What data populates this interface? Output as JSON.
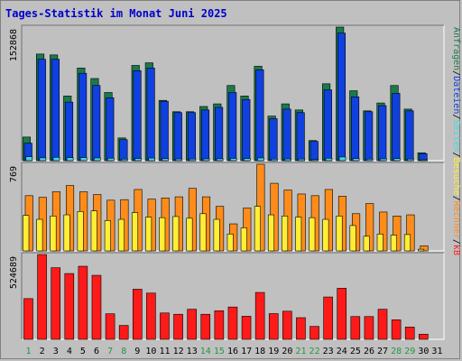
{
  "title": "Tages-Statistik im Monat Juni 2025",
  "colors": {
    "title": "#0000cc",
    "plot_bg": "#c0c0c0",
    "grid": "#808080",
    "anfragen": "#1a7a4a",
    "dateien": "#1040e0",
    "seiten": "#40d8e0",
    "besuche": "#ffee33",
    "rechner": "#ff8c1a",
    "kb": "#ff1a1a",
    "weekend": "#229944",
    "weekday": "#000000"
  },
  "chart_data": [
    {
      "type": "bar",
      "panel": "top",
      "ymax_label": "152868",
      "ylim": [
        0,
        152868
      ],
      "side_labels": [
        "Anfragen",
        "/",
        "Dateien",
        "/",
        "Seiten",
        "/",
        "Besuche",
        "/",
        "Rechner",
        "/",
        "kB"
      ],
      "categories": [
        "1",
        "2",
        "3",
        "4",
        "5",
        "6",
        "7",
        "8",
        "9",
        "10",
        "11",
        "12",
        "13",
        "14",
        "15",
        "16",
        "17",
        "18",
        "19",
        "20",
        "21",
        "22",
        "23",
        "24",
        "25",
        "26",
        "27",
        "28",
        "29",
        "30",
        "31"
      ],
      "series": [
        {
          "name": "Anfragen",
          "values": [
            27000,
            122000,
            121000,
            74000,
            106000,
            94000,
            78000,
            26000,
            109000,
            112000,
            69000,
            56000,
            56000,
            62000,
            65000,
            86000,
            74000,
            108000,
            51000,
            65000,
            58000,
            23000,
            88000,
            152868,
            80000,
            57000,
            66000,
            86000,
            59000,
            9000,
            0
          ]
        },
        {
          "name": "Dateien",
          "values": [
            20000,
            116000,
            116000,
            67000,
            100000,
            86000,
            72000,
            24000,
            103000,
            106000,
            68000,
            55000,
            55000,
            58000,
            61000,
            78000,
            70000,
            104000,
            48000,
            59000,
            55000,
            22000,
            81000,
            146000,
            73000,
            56000,
            63000,
            77000,
            57000,
            8000,
            0
          ]
        },
        {
          "name": "Seiten",
          "values": [
            4500,
            3200,
            3800,
            3400,
            3500,
            3100,
            2800,
            1800,
            2500,
            3000,
            2300,
            2000,
            1900,
            2100,
            2200,
            2600,
            2500,
            3100,
            1800,
            2000,
            1900,
            1200,
            2700,
            4200,
            2400,
            1800,
            2100,
            2400,
            1900,
            800,
            0
          ]
        }
      ]
    },
    {
      "type": "bar",
      "panel": "middle",
      "ymax_label": "769",
      "ylim": [
        0,
        769
      ],
      "categories": [
        "1",
        "2",
        "3",
        "4",
        "5",
        "6",
        "7",
        "8",
        "9",
        "10",
        "11",
        "12",
        "13",
        "14",
        "15",
        "16",
        "17",
        "18",
        "19",
        "20",
        "21",
        "22",
        "23",
        "24",
        "25",
        "26",
        "27",
        "28",
        "29",
        "30",
        "31"
      ],
      "series": [
        {
          "name": "Besuche",
          "values": [
            315,
            280,
            310,
            320,
            350,
            355,
            270,
            280,
            340,
            300,
            295,
            305,
            290,
            330,
            280,
            150,
            205,
            395,
            320,
            310,
            300,
            295,
            280,
            310,
            225,
            130,
            150,
            140,
            145,
            15,
            0
          ]
        },
        {
          "name": "Rechner",
          "values": [
            490,
            475,
            525,
            580,
            525,
            500,
            450,
            455,
            545,
            460,
            470,
            480,
            555,
            480,
            395,
            240,
            380,
            769,
            600,
            540,
            505,
            490,
            545,
            485,
            330,
            420,
            345,
            310,
            320,
            45,
            0
          ]
        }
      ]
    },
    {
      "type": "bar",
      "panel": "bottom",
      "ymax_label": "524689",
      "ylim": [
        0,
        524689
      ],
      "categories": [
        "1",
        "2",
        "3",
        "4",
        "5",
        "6",
        "7",
        "8",
        "9",
        "10",
        "11",
        "12",
        "13",
        "14",
        "15",
        "16",
        "17",
        "18",
        "19",
        "20",
        "21",
        "22",
        "23",
        "24",
        "25",
        "26",
        "27",
        "28",
        "29",
        "30",
        "31"
      ],
      "series": [
        {
          "name": "kB",
          "values": [
            252000,
            524689,
            443000,
            407000,
            452000,
            396000,
            158000,
            86000,
            310000,
            286000,
            163000,
            155000,
            186000,
            155000,
            177000,
            200000,
            143000,
            290000,
            159000,
            174000,
            134000,
            80000,
            262000,
            316000,
            141000,
            141000,
            186000,
            121000,
            76000,
            32000,
            0
          ]
        }
      ]
    }
  ],
  "days": {
    "labels": [
      "1",
      "2",
      "3",
      "4",
      "5",
      "6",
      "7",
      "8",
      "9",
      "10",
      "11",
      "12",
      "13",
      "14",
      "15",
      "16",
      "17",
      "18",
      "19",
      "20",
      "21",
      "22",
      "23",
      "24",
      "25",
      "26",
      "27",
      "28",
      "29",
      "30",
      "31"
    ],
    "weekend": [
      true,
      false,
      false,
      false,
      false,
      false,
      true,
      true,
      false,
      false,
      false,
      false,
      false,
      true,
      true,
      false,
      false,
      false,
      false,
      false,
      true,
      true,
      false,
      false,
      false,
      false,
      false,
      true,
      true,
      false,
      false
    ]
  }
}
